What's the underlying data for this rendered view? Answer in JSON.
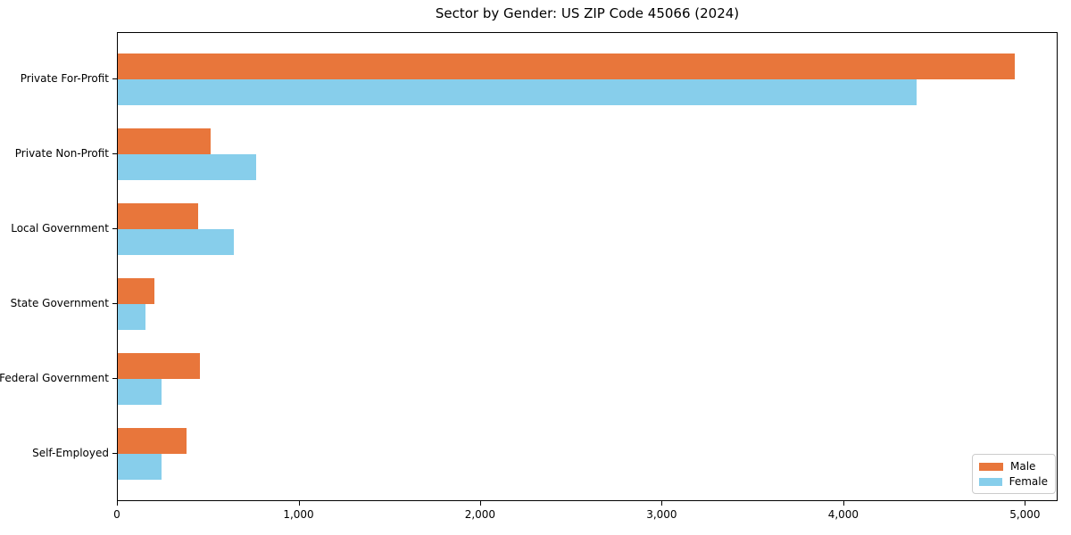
{
  "title": "Sector by Gender: US ZIP Code 45066 (2024)",
  "colors": {
    "male_bar": "#e8763b",
    "female_bar": "#87ceeb",
    "axis": "#000000",
    "legend_border": "#cccccc",
    "background": "#ffffff"
  },
  "chart_data": {
    "type": "bar",
    "orientation": "horizontal",
    "title": "Sector by Gender: US ZIP Code 45066 (2024)",
    "xlabel": "",
    "ylabel": "",
    "categories": [
      "Private For-Profit",
      "Private Non-Profit",
      "Local Government",
      "State Government",
      "Federal Government",
      "Self-Employed"
    ],
    "series": [
      {
        "name": "Male",
        "color": "#e8763b",
        "values": [
          4940,
          510,
          440,
          200,
          450,
          380
        ]
      },
      {
        "name": "Female",
        "color": "#87ceeb",
        "values": [
          4400,
          760,
          640,
          150,
          240,
          240
        ]
      }
    ],
    "xlim": [
      0,
      5180
    ],
    "xticks": [
      0,
      1000,
      2000,
      3000,
      4000,
      5000
    ],
    "xtick_labels": [
      "0",
      "1,000",
      "2,000",
      "3,000",
      "4,000",
      "5,000"
    ],
    "grid": false,
    "legend": {
      "position": "lower right",
      "entries": [
        "Male",
        "Female"
      ]
    }
  }
}
